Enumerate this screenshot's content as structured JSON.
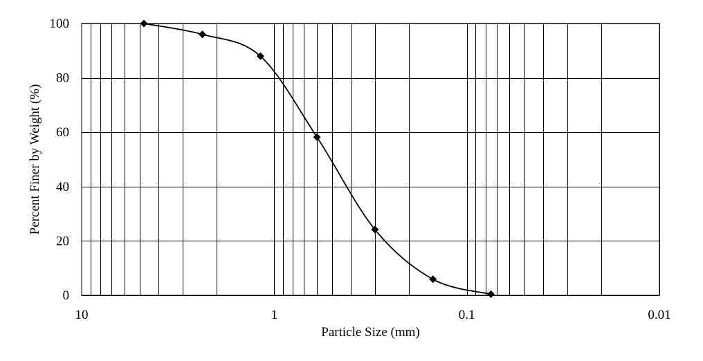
{
  "chart_data": {
    "type": "scatter",
    "title": "",
    "xlabel": "Particle Size (mm)",
    "ylabel": "Percent Finer by Weight (%)",
    "x_scale": "log",
    "x_reversed": true,
    "xlim": [
      10,
      0.01
    ],
    "ylim": [
      0,
      100
    ],
    "x_ticks": [
      10,
      1,
      0.1,
      0.01
    ],
    "x_tick_labels": [
      "10",
      "1",
      "0.1",
      "0.01"
    ],
    "y_ticks": [
      0,
      20,
      40,
      60,
      80,
      100
    ],
    "y_tick_labels": [
      "0",
      "20",
      "40",
      "60",
      "80",
      "100"
    ],
    "grid": true,
    "legend": "none",
    "marker": "diamond",
    "line": "smooth",
    "color": "#000000",
    "series": [
      {
        "x": [
          4.75,
          2.36,
          1.18,
          0.6,
          0.3,
          0.15,
          0.075
        ],
        "y": [
          100,
          96,
          88,
          58.2,
          24.2,
          5.9,
          0.4
        ]
      }
    ]
  }
}
